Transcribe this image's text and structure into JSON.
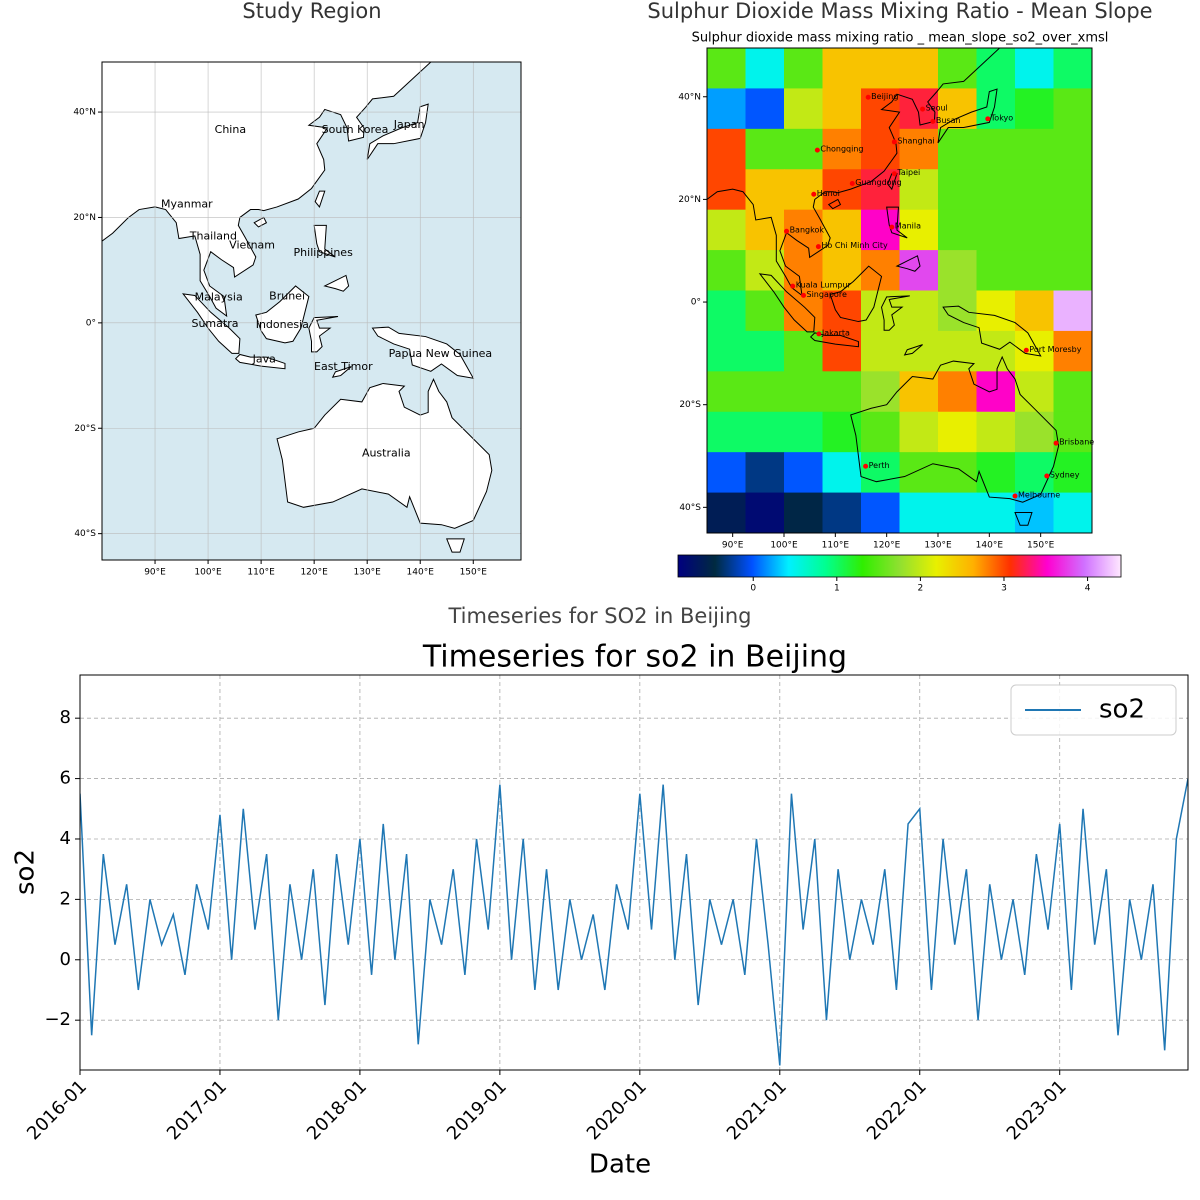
{
  "chart_data": [
    {
      "type": "map",
      "title": "Study Region",
      "xlim": [
        80,
        159
      ],
      "ylim": [
        -45,
        49.5
      ],
      "grid": true,
      "land_color": "#ffffff",
      "ocean_color": "#d6e9f1",
      "xticks": [
        {
          "value": 90,
          "label": "90°E"
        },
        {
          "value": 100,
          "label": "100°E"
        },
        {
          "value": 110,
          "label": "110°E"
        },
        {
          "value": 120,
          "label": "120°E"
        },
        {
          "value": 130,
          "label": "130°E"
        },
        {
          "value": 140,
          "label": "140°E"
        },
        {
          "value": 150,
          "label": "150°E"
        }
      ],
      "yticks": [
        {
          "value": 40,
          "label": "40°N"
        },
        {
          "value": 20,
          "label": "20°N"
        },
        {
          "value": 0,
          "label": "0°"
        },
        {
          "value": -20,
          "label": "20°S"
        },
        {
          "value": -40,
          "label": "40°S"
        }
      ],
      "labels": [
        {
          "text": "China",
          "lon": 104.2,
          "lat": 36.6
        },
        {
          "text": "South Korea",
          "lon": 127.7,
          "lat": 36.6
        },
        {
          "text": "Japan",
          "lon": 137.9,
          "lat": 37.5
        },
        {
          "text": "Myanmar",
          "lon": 96,
          "lat": 22.5
        },
        {
          "text": "Thailand",
          "lon": 101,
          "lat": 16.4
        },
        {
          "text": "Vietnam",
          "lon": 108.3,
          "lat": 14.7
        },
        {
          "text": "Philippines",
          "lon": 121.7,
          "lat": 13.3
        },
        {
          "text": "Malaysia",
          "lon": 102,
          "lat": 4.8
        },
        {
          "text": "Brunei",
          "lon": 114.9,
          "lat": 5
        },
        {
          "text": "Sumatra",
          "lon": 101.3,
          "lat": -0.2
        },
        {
          "text": "Indonesia",
          "lon": 114,
          "lat": -0.4
        },
        {
          "text": "Java",
          "lon": 110.6,
          "lat": -7
        },
        {
          "text": "East Timor",
          "lon": 125.5,
          "lat": -8.4
        },
        {
          "text": "Papua New Guinea",
          "lon": 143.8,
          "lat": -5.9
        },
        {
          "text": "Australia",
          "lon": 133.6,
          "lat": -24.8
        }
      ]
    },
    {
      "type": "heatmap",
      "title": "Sulphur Dioxide Mass Mixing Ratio - Mean Slope",
      "subtitle": "Sulphur dioxide mass mixing ratio _ mean_slope_so2_over_xmsl",
      "xlim": [
        85,
        160
      ],
      "ylim": [
        -45,
        49.5
      ],
      "zlim": [
        -0.9,
        4.4
      ],
      "colorbar_ticks": [
        0,
        1,
        2,
        3,
        4
      ],
      "colormap": [
        "#000080",
        "#002a40",
        "#0050ff",
        "#00f0ff",
        "#00ff90",
        "#30ee00",
        "#90e030",
        "#e8f000",
        "#ffb000",
        "#ff3000",
        "#ff00d0",
        "#d070ff",
        "#ffe8ff"
      ],
      "xticks": [
        {
          "value": 90,
          "label": "90°E"
        },
        {
          "value": 100,
          "label": "100°E"
        },
        {
          "value": 110,
          "label": "110°E"
        },
        {
          "value": 120,
          "label": "120°E"
        },
        {
          "value": 130,
          "label": "130°E"
        },
        {
          "value": 140,
          "label": "140°E"
        },
        {
          "value": 150,
          "label": "150°E"
        }
      ],
      "yticks": [
        {
          "value": 40,
          "label": "40°N"
        },
        {
          "value": 20,
          "label": "20°N"
        },
        {
          "value": 0,
          "label": "0°"
        },
        {
          "value": -20,
          "label": "20°S"
        },
        {
          "value": -40,
          "label": "40°S"
        }
      ],
      "z": [
        [
          1.5,
          0.5,
          1.5,
          2.5,
          2.5,
          2.5,
          1.5,
          1,
          0.5,
          1
        ],
        [
          0.2,
          0,
          2,
          2.5,
          3,
          3.2,
          2.5,
          1,
          1.2,
          1.5
        ],
        [
          3,
          1.5,
          1.5,
          2.8,
          3,
          2.8,
          1.5,
          1.5,
          1.5,
          1.5
        ],
        [
          3,
          2.5,
          2.5,
          3,
          3.2,
          2,
          1.5,
          1.5,
          1.5,
          1.5
        ],
        [
          2,
          2.5,
          2.8,
          2.5,
          3.5,
          2.2,
          1.5,
          1.5,
          1.5,
          1.5
        ],
        [
          1.5,
          2,
          2.8,
          2.5,
          2.8,
          3.8,
          1.8,
          1.5,
          1.5,
          1.5
        ],
        [
          1,
          1.5,
          2.8,
          3,
          2,
          2,
          1.8,
          2.2,
          2.5,
          4.2
        ],
        [
          1,
          1,
          1.5,
          3,
          2,
          2,
          2,
          2,
          2.2,
          2.8
        ],
        [
          1.5,
          1.5,
          1.5,
          1.5,
          1.8,
          2.5,
          2.8,
          3.5,
          2,
          1.5
        ],
        [
          1,
          1,
          1,
          1.2,
          1.5,
          2,
          2.2,
          2,
          1.8,
          1.5
        ],
        [
          0,
          -0.3,
          0,
          0.5,
          1,
          1.5,
          1.5,
          1.2,
          1,
          1.2
        ],
        [
          -0.6,
          -0.8,
          -0.5,
          -0.3,
          0,
          0.5,
          0.5,
          0.5,
          0.3,
          0.5
        ]
      ],
      "city_color": "#ff0000",
      "cities": [
        {
          "name": "Beijing",
          "lon": 116.4,
          "lat": 39.9
        },
        {
          "name": "Seoul",
          "lon": 127,
          "lat": 37.6
        },
        {
          "name": "Busan",
          "lon": 129,
          "lat": 35.2
        },
        {
          "name": "Tokyo",
          "lon": 139.7,
          "lat": 35.7
        },
        {
          "name": "Shanghai",
          "lon": 121.5,
          "lat": 31.2
        },
        {
          "name": "Chongqing",
          "lon": 106.5,
          "lat": 29.6
        },
        {
          "name": "Taipei",
          "lon": 121.5,
          "lat": 25
        },
        {
          "name": "Guangdong",
          "lon": 113.3,
          "lat": 23.1
        },
        {
          "name": "Hanoi",
          "lon": 105.8,
          "lat": 21
        },
        {
          "name": "Manila",
          "lon": 121,
          "lat": 14.6
        },
        {
          "name": "Bangkok",
          "lon": 100.5,
          "lat": 13.8
        },
        {
          "name": "Ho Chi Minh City",
          "lon": 106.7,
          "lat": 10.8
        },
        {
          "name": "Kuala Lumpur",
          "lon": 101.7,
          "lat": 3.1
        },
        {
          "name": "Singapore",
          "lon": 103.8,
          "lat": 1.3
        },
        {
          "name": "Jakarta",
          "lon": 106.8,
          "lat": -6.2
        },
        {
          "name": "Port Moresby",
          "lon": 147.2,
          "lat": -9.4
        },
        {
          "name": "Brisbane",
          "lon": 153,
          "lat": -27.5
        },
        {
          "name": "Perth",
          "lon": 115.9,
          "lat": -32
        },
        {
          "name": "Sydney",
          "lon": 151.2,
          "lat": -33.9
        },
        {
          "name": "Melbourne",
          "lon": 145,
          "lat": -37.8
        }
      ]
    },
    {
      "type": "line",
      "suptitle": "Timeseries for SO2 in Beijing",
      "title": "Timeseries for so2 in Beijing",
      "xlabel": "Date",
      "ylabel": "so2",
      "legend": "upper right",
      "grid": true,
      "xlim": [
        "2016-01",
        "2023-12"
      ],
      "ylim": [
        -3.65,
        9.43
      ],
      "yticks": [
        {
          "value": -2,
          "label": "−2"
        },
        0,
        2,
        4,
        6,
        8
      ],
      "xticks": [
        "2016-01",
        "2017-01",
        "2018-01",
        "2019-01",
        "2020-01",
        "2021-01",
        "2022-01",
        "2023-01"
      ],
      "x": [
        "2016-01",
        "2016-02",
        "2016-03",
        "2016-04",
        "2016-05",
        "2016-06",
        "2016-07",
        "2016-08",
        "2016-09",
        "2016-10",
        "2016-11",
        "2016-12",
        "2017-01",
        "2017-02",
        "2017-03",
        "2017-04",
        "2017-05",
        "2017-06",
        "2017-07",
        "2017-08",
        "2017-09",
        "2017-10",
        "2017-11",
        "2017-12",
        "2018-01",
        "2018-02",
        "2018-03",
        "2018-04",
        "2018-05",
        "2018-06",
        "2018-07",
        "2018-08",
        "2018-09",
        "2018-10",
        "2018-11",
        "2018-12",
        "2019-01",
        "2019-02",
        "2019-03",
        "2019-04",
        "2019-05",
        "2019-06",
        "2019-07",
        "2019-08",
        "2019-09",
        "2019-10",
        "2019-11",
        "2019-12",
        "2020-01",
        "2020-02",
        "2020-03",
        "2020-04",
        "2020-05",
        "2020-06",
        "2020-07",
        "2020-08",
        "2020-09",
        "2020-10",
        "2020-11",
        "2020-12",
        "2021-01",
        "2021-02",
        "2021-03",
        "2021-04",
        "2021-05",
        "2021-06",
        "2021-07",
        "2021-08",
        "2021-09",
        "2021-10",
        "2021-11",
        "2021-12",
        "2022-01",
        "2022-02",
        "2022-03",
        "2022-04",
        "2022-05",
        "2022-06",
        "2022-07",
        "2022-08",
        "2022-09",
        "2022-10",
        "2022-11",
        "2022-12",
        "2023-01",
        "2023-02",
        "2023-03",
        "2023-04",
        "2023-05",
        "2023-06",
        "2023-07",
        "2023-08",
        "2023-09",
        "2023-10",
        "2023-11",
        "2023-12"
      ],
      "series": [
        {
          "name": "so2",
          "color": "#1f77b4",
          "values": [
            5.5,
            -2.5,
            3.5,
            0.5,
            2.5,
            -1,
            2,
            0.5,
            1.5,
            -0.5,
            2.5,
            1,
            4.8,
            0,
            5,
            1,
            3.5,
            -2,
            2.5,
            0,
            3,
            -1.5,
            3.5,
            0.5,
            4,
            -0.5,
            4.5,
            0,
            3.5,
            -2.8,
            2,
            0.5,
            3,
            -0.5,
            4,
            1,
            5.8,
            0,
            4,
            -1,
            3,
            -1,
            2,
            0,
            1.5,
            -1,
            2.5,
            1,
            5.5,
            1,
            5.8,
            0,
            3.5,
            -1.5,
            2,
            0.5,
            2,
            -0.5,
            4,
            0.5,
            -3.5,
            5.5,
            1,
            4,
            -2,
            3,
            0,
            2,
            0.5,
            3,
            -1,
            4.5,
            5,
            -1,
            4,
            0.5,
            3,
            -2,
            2.5,
            0,
            2,
            -0.5,
            3.5,
            1,
            4.5,
            -1,
            5,
            0.5,
            3,
            -2.5,
            2,
            0,
            2.5,
            -3,
            4,
            6
          ]
        }
      ]
    }
  ]
}
